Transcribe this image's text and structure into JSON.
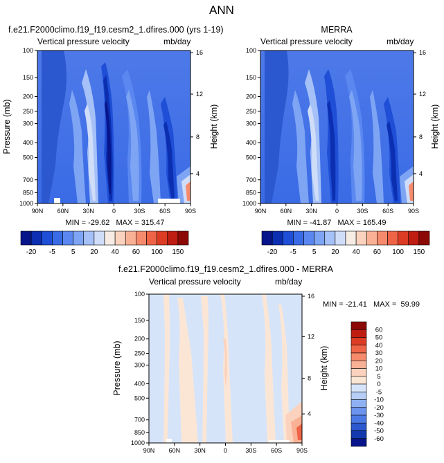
{
  "figure": {
    "title": "ANN"
  },
  "chart_data": [
    {
      "type": "heatmap",
      "title": "f.e21.F2000climo.f19_f19.cesm2_1.dfires.000 (yrs 1-19)",
      "left_label": "Vertical pressure velocity",
      "right_label": "mb/day",
      "xlabel": "",
      "ylabel": "Pressure (mb)",
      "ylabel_right": "Height (km)",
      "x_ticks": [
        "90N",
        "60N",
        "30N",
        "0",
        "30S",
        "60S",
        "90S"
      ],
      "y_ticks": [
        "100",
        "150",
        "200",
        "250",
        "300",
        "400",
        "500",
        "700",
        "850",
        "1000"
      ],
      "y_right_ticks": [
        "16",
        "12",
        "8",
        "4"
      ],
      "stats": "MIN = -29.62   MAX = 315.47"
    },
    {
      "type": "heatmap",
      "title": "MERRA",
      "left_label": "Vertical pressure velocity",
      "right_label": "mb/day",
      "xlabel": "",
      "ylabel": "",
      "ylabel_right": "Height (km)",
      "x_ticks": [
        "90N",
        "60N",
        "30N",
        "0",
        "30S",
        "60S",
        "90S"
      ],
      "y_ticks": [
        "100",
        "150",
        "200",
        "250",
        "300",
        "400",
        "500",
        "700",
        "850",
        "1000"
      ],
      "y_right_ticks": [
        "16",
        "12",
        "8",
        "4"
      ],
      "stats": "MIN = -41.87   MAX = 165.49"
    },
    {
      "type": "heatmap",
      "title": "f.e21.F2000climo.f19_f19.cesm2_1.dfires.000 - MERRA",
      "left_label": "Vertical pressure velocity",
      "right_label": "mb/day",
      "xlabel": "",
      "ylabel": "Pressure (mb)",
      "ylabel_right": "Height (km)",
      "x_ticks": [
        "90N",
        "60N",
        "30N",
        "0",
        "30S",
        "60S",
        "90S"
      ],
      "y_ticks": [
        "100",
        "150",
        "200",
        "250",
        "300",
        "400",
        "500",
        "700",
        "850",
        "1000"
      ],
      "y_right_ticks": [
        "16",
        "12",
        "8",
        "4"
      ],
      "stats": "MIN = -21.41   MAX =  59.99"
    }
  ],
  "colorbar_top": {
    "labels": [
      "-20",
      "-5",
      "5",
      "20",
      "40",
      "60",
      "100",
      "150"
    ],
    "colors": [
      "#08158a",
      "#0b2fb0",
      "#1f4fd6",
      "#3a6be6",
      "#5a88f0",
      "#7ea4f4",
      "#a5c1f7",
      "#cfddf9",
      "#f6ece4",
      "#fbd2bd",
      "#f9b195",
      "#f58b6c",
      "#ef6447",
      "#dc3b24",
      "#bf1d12",
      "#8c0a05"
    ]
  },
  "colorbar_diff": {
    "labels": [
      "60",
      "50",
      "40",
      "30",
      "20",
      "10",
      "5",
      "0",
      "-5",
      "-10",
      "-20",
      "-30",
      "-40",
      "-50",
      "-60"
    ],
    "colors": [
      "#8c0a05",
      "#bf1d12",
      "#dc3b24",
      "#ef6447",
      "#f58b6c",
      "#f9b195",
      "#fbd2bd",
      "#fbe6d6",
      "#d6e4f9",
      "#b7cff7",
      "#8fb0f3",
      "#6c94ee",
      "#4b79e3",
      "#2c58cf",
      "#123aae",
      "#08158a"
    ]
  }
}
